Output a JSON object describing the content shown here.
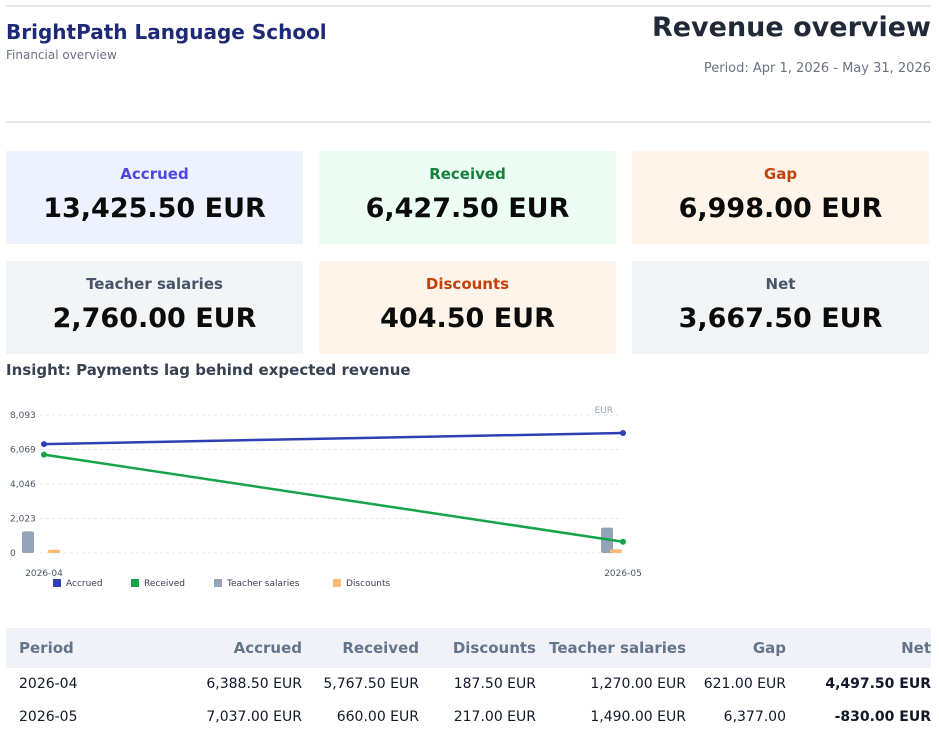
{
  "header": {
    "school_name": "BrightPath Language School",
    "subtitle": "Financial overview",
    "page_title": "Revenue overview",
    "period": "Period: Apr 1, 2026 - May 31, 2026"
  },
  "cards": [
    {
      "label": "Accrued",
      "value": "13,425.50 EUR",
      "label_color": "#4f46e5"
    },
    {
      "label": "Received",
      "value": "6,427.50 EUR",
      "label_color": "#15803d"
    },
    {
      "label": "Gap",
      "value": "6,998.00 EUR",
      "label_color": "#c2410c"
    },
    {
      "label": "Teacher salaries",
      "value": "2,760.00 EUR",
      "label_color": "#475569"
    },
    {
      "label": "Discounts",
      "value": "404.50 EUR",
      "label_color": "#c2410c"
    },
    {
      "label": "Net",
      "value": "3,667.50 EUR",
      "label_color": "#475569"
    }
  ],
  "insight": "Insight: Payments lag behind expected revenue",
  "chart_data": {
    "type": "line",
    "unit_label": "EUR",
    "categories": [
      "2026-04",
      "2026-05"
    ],
    "y_ticks": [
      "8,093",
      "6,069",
      "4,046",
      "2,023",
      "0"
    ],
    "ylim": [
      0,
      8093
    ],
    "series": [
      {
        "name": "Accrued",
        "type": "line",
        "values": [
          6388.5,
          7037.0
        ],
        "color": "#2f3fb5"
      },
      {
        "name": "Received",
        "type": "line",
        "values": [
          5767.5,
          660.0
        ],
        "color": "#16a34a"
      },
      {
        "name": "Teacher salaries",
        "type": "bar",
        "values": [
          1270.0,
          1490.0
        ],
        "color": "#94a3b8"
      },
      {
        "name": "Discounts",
        "type": "bar",
        "values": [
          187.5,
          217.0
        ],
        "color": "#fdba74"
      }
    ]
  },
  "table": {
    "headers": [
      "Period",
      "Accrued",
      "Received",
      "Discounts",
      "Teacher salaries",
      "Gap",
      "Net"
    ],
    "rows": [
      [
        "2026-04",
        "6,388.50 EUR",
        "5,767.50 EUR",
        "187.50 EUR",
        "1,270.00 EUR",
        "621.00 EUR",
        "4,497.50 EUR"
      ],
      [
        "2026-05",
        "7,037.00 EUR",
        "660.00 EUR",
        "217.00 EUR",
        "1,490.00 EUR",
        "6,377.00",
        "-830.00 EUR"
      ]
    ]
  }
}
